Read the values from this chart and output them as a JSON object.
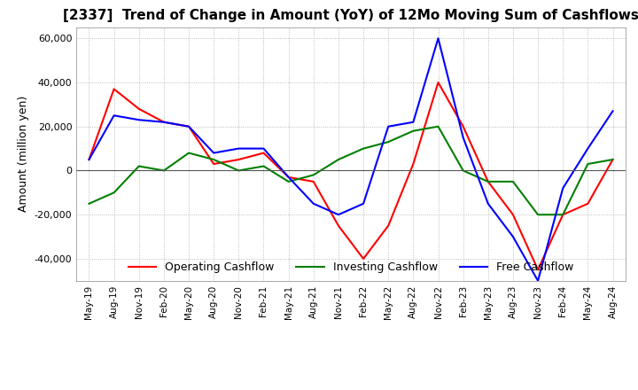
{
  "title": "[2337]  Trend of Change in Amount (YoY) of 12Mo Moving Sum of Cashflows",
  "ylabel": "Amount (million yen)",
  "ylim": [
    -50000,
    65000
  ],
  "yticks": [
    -40000,
    -20000,
    0,
    20000,
    40000,
    60000
  ],
  "x_labels": [
    "May-19",
    "Aug-19",
    "Nov-19",
    "Feb-20",
    "May-20",
    "Aug-20",
    "Nov-20",
    "Feb-21",
    "May-21",
    "Aug-21",
    "Nov-21",
    "Feb-22",
    "May-22",
    "Aug-22",
    "Nov-22",
    "Feb-23",
    "May-23",
    "Aug-23",
    "Nov-23",
    "Feb-24",
    "May-24",
    "Aug-24"
  ],
  "operating": [
    5000,
    37000,
    28000,
    22000,
    20000,
    3000,
    5000,
    8000,
    -3000,
    -5000,
    -25000,
    -40000,
    -25000,
    3000,
    40000,
    20000,
    -5000,
    -20000,
    -45000,
    -20000,
    -15000,
    5000
  ],
  "investing": [
    -15000,
    -10000,
    2000,
    0,
    8000,
    5000,
    0,
    2000,
    -5000,
    -2000,
    5000,
    10000,
    13000,
    18000,
    20000,
    0,
    -5000,
    -5000,
    -20000,
    -20000,
    3000,
    5000
  ],
  "free": [
    5000,
    25000,
    23000,
    22000,
    20000,
    8000,
    10000,
    10000,
    -3000,
    -15000,
    -20000,
    -15000,
    20000,
    22000,
    60000,
    15000,
    -15000,
    -30000,
    -50000,
    -8000,
    10000,
    27000
  ],
  "operating_color": "#ff0000",
  "investing_color": "#008000",
  "free_color": "#0000ff",
  "grid_color": "#aaaaaa",
  "zero_line_color": "#555555",
  "background_color": "#ffffff",
  "title_fontsize": 11,
  "ylabel_fontsize": 9,
  "tick_fontsize": 8,
  "xtick_fontsize": 7.5,
  "legend_fontsize": 9,
  "linewidth": 1.5
}
